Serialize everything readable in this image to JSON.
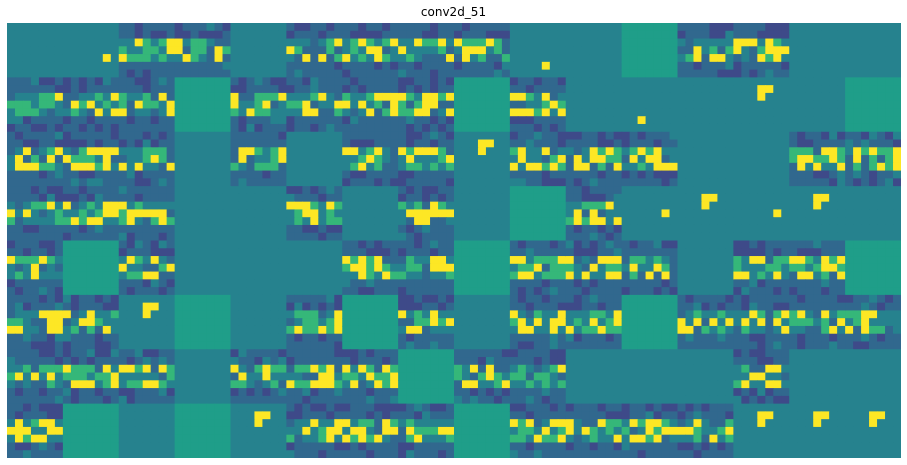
{
  "title": "conv2d_51",
  "colormap": {
    "name": "viridis",
    "stops": [
      "#440154",
      "#482878",
      "#3e4a89",
      "#31688e",
      "#26828e",
      "#1f9e89",
      "#35b779",
      "#6ece58",
      "#b5de2b",
      "#fde725"
    ]
  },
  "grid": {
    "rows": 8,
    "cols": 16,
    "tile_rows": 7,
    "tile_cols": 7
  },
  "tiles": [
    [
      "flat",
      "dot",
      "digit",
      "digit",
      "flat",
      "digit",
      "digit",
      "digit",
      "digit",
      "dot",
      "flat",
      "flat",
      "digit",
      "digit",
      "flat",
      "flat"
    ],
    [
      "digit",
      "digit",
      "digit",
      "flat",
      "digit",
      "digit",
      "digit",
      "digit",
      "flat",
      "digit",
      "flat",
      "dot",
      "flat",
      "corner",
      "flat",
      "flat"
    ],
    [
      "digit",
      "digit",
      "digit",
      "flat",
      "digit",
      "flat",
      "digit",
      "digit",
      "corner",
      "digit",
      "digit",
      "digit",
      "flat",
      "flat",
      "digit",
      "digit"
    ],
    [
      "digit",
      "digit",
      "digit",
      "flat",
      "flat",
      "digit",
      "flat",
      "digit",
      "flat",
      "flat",
      "digit",
      "dot",
      "corner",
      "dot",
      "corner",
      "flat"
    ],
    [
      "digit",
      "flat",
      "digit",
      "flat",
      "flat",
      "flat",
      "digit",
      "digit",
      "flat",
      "digit",
      "digit",
      "digit",
      "flat",
      "digit",
      "digit",
      "flat"
    ],
    [
      "digit",
      "digit",
      "corner",
      "flat",
      "flat",
      "digit",
      "flat",
      "digit",
      "flat",
      "digit",
      "digit",
      "flat",
      "digit",
      "digit",
      "digit",
      "digit"
    ],
    [
      "digit",
      "digit",
      "digit",
      "flat",
      "digit",
      "digit",
      "digit",
      "flat",
      "digit",
      "digit",
      "flat",
      "flat",
      "flat",
      "digit",
      "flat",
      "flat"
    ],
    [
      "digit",
      "flat",
      "flat",
      "flat",
      "corner",
      "digit",
      "digit",
      "digit",
      "flat",
      "digit",
      "digit",
      "digit",
      "digit",
      "corner",
      "corner",
      "corner"
    ]
  ]
}
